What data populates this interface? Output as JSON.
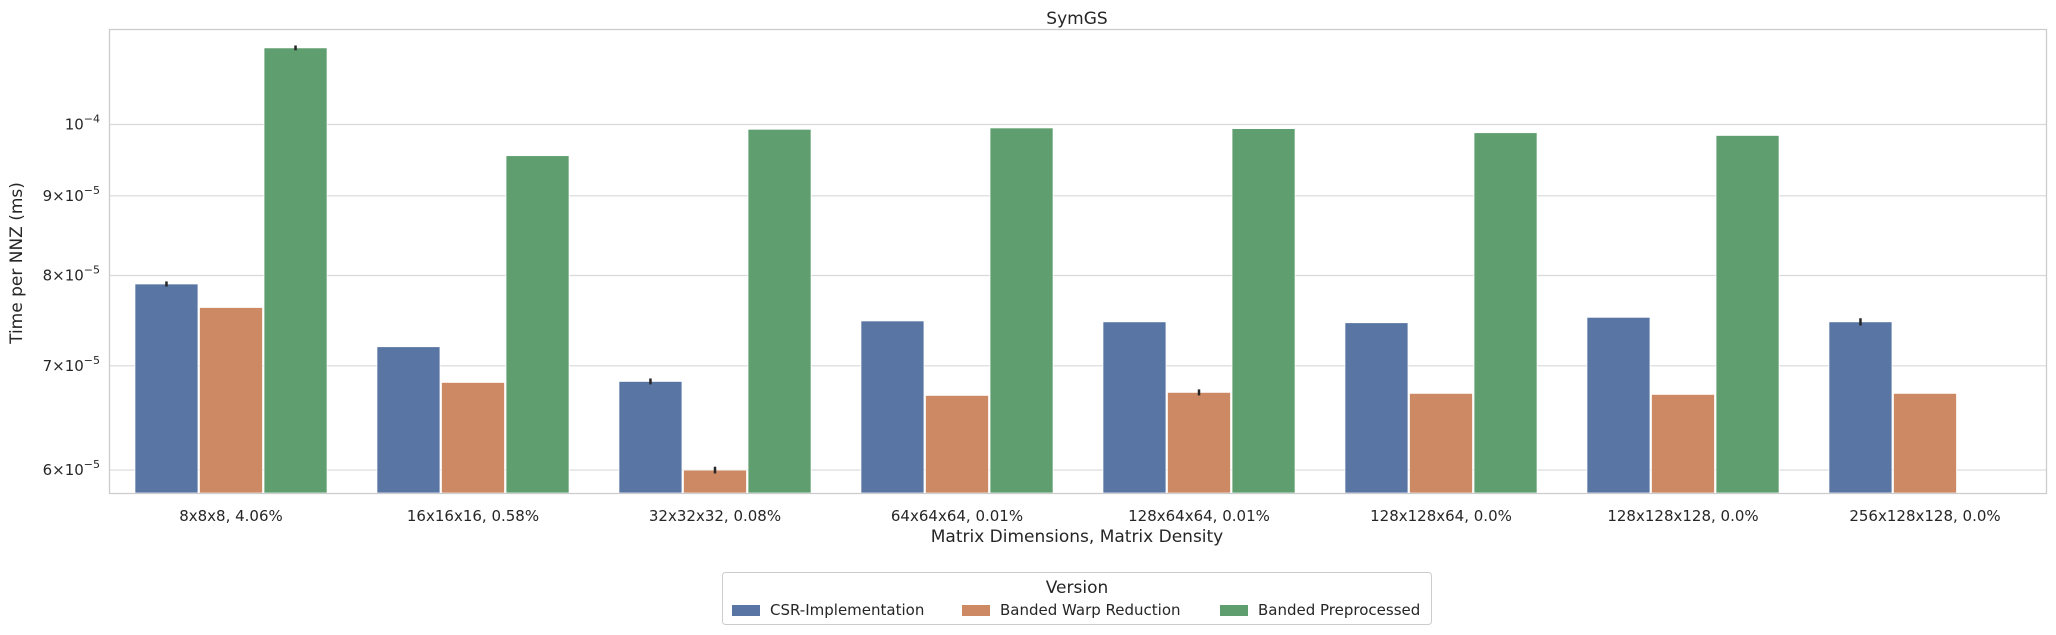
{
  "chart_data": {
    "type": "bar",
    "title": "SymGS",
    "xlabel": "Matrix Dimensions, Matrix Density",
    "ylabel": "Time per NNZ (ms)",
    "yscale": "log",
    "ylim": [
      5.8e-05,
      0.000115
    ],
    "grid": "horizontal",
    "categories": [
      "8x8x8, 4.06%",
      "16x16x16, 0.58%",
      "32x32x32, 0.08%",
      "64x64x64, 0.01%",
      "128x64x64, 0.01%",
      "128x128x64, 0.0%",
      "128x128x128, 0.0%",
      "256x128x128, 0.0%"
    ],
    "yticks": [
      {
        "value": 6e-05,
        "mantissa": "6",
        "exp": "−5"
      },
      {
        "value": 7e-05,
        "mantissa": "7",
        "exp": "−5"
      },
      {
        "value": 8e-05,
        "mantissa": "8",
        "exp": "−5"
      },
      {
        "value": 9e-05,
        "mantissa": "9",
        "exp": "−5"
      },
      {
        "value": 0.0001,
        "mantissa": "",
        "exp": "−4"
      }
    ],
    "series": [
      {
        "name": "CSR-Implementation",
        "color": "#5975a4",
        "values": [
          7.9e-05,
          7.2e-05,
          6.84e-05,
          7.48e-05,
          7.47e-05,
          7.46e-05,
          7.52e-05,
          7.47e-05
        ],
        "errors": [
          3e-07,
          0,
          3e-07,
          0,
          0,
          0,
          0,
          4e-07
        ]
      },
      {
        "name": "Banded Warp Reduction",
        "color": "#cc8963",
        "values": [
          7.63e-05,
          6.83e-05,
          6e-05,
          6.7e-05,
          6.73e-05,
          6.72e-05,
          6.71e-05,
          6.72e-05
        ],
        "errors": [
          0,
          0,
          3e-07,
          0,
          3e-07,
          0,
          0,
          0
        ]
      },
      {
        "name": "Banded Preprocessed",
        "color": "#5f9e6e",
        "values": [
          0.000112,
          9.55e-05,
          9.93e-05,
          9.95e-05,
          9.94e-05,
          9.88e-05,
          9.84e-05,
          null
        ],
        "errors": [
          4e-07,
          0,
          0,
          0,
          0,
          0,
          0,
          0
        ]
      }
    ],
    "legend": {
      "title": "Version",
      "placement": "bottom-center"
    }
  }
}
